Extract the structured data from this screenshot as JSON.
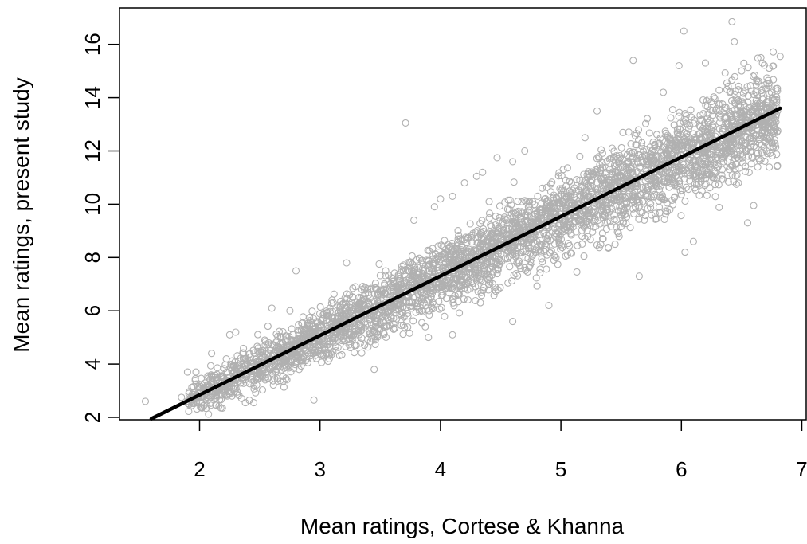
{
  "chart_data": {
    "type": "scatter",
    "title": "",
    "xlabel": "Mean ratings, Cortese & Khanna",
    "ylabel": "Mean ratings, present study",
    "xlim": [
      1.3,
      7.0
    ],
    "ylim": [
      1.95,
      17.2
    ],
    "x_ticks": [
      2,
      3,
      4,
      5,
      6,
      7
    ],
    "y_ticks": [
      2,
      4,
      6,
      8,
      10,
      12,
      14,
      16
    ],
    "grid": false,
    "legend": "none",
    "point_color": "#b0b0b0",
    "line_color": "#000000",
    "fit_line": {
      "label": "",
      "points": [
        [
          1.6,
          1.95
        ],
        [
          6.82,
          13.6
        ]
      ]
    },
    "series": [
      {
        "values": [
          [
            1.55,
            2.6
          ],
          [
            1.85,
            2.75
          ],
          [
            1.9,
            3.7
          ],
          [
            1.97,
            3.7
          ],
          [
            2.1,
            4.4
          ],
          [
            2.25,
            5.1
          ],
          [
            2.3,
            5.2
          ],
          [
            2.38,
            2.55
          ],
          [
            2.45,
            2.55
          ],
          [
            2.8,
            7.5
          ],
          [
            2.95,
            2.65
          ],
          [
            3.22,
            7.8
          ],
          [
            3.71,
            13.05
          ],
          [
            3.78,
            9.4
          ],
          [
            3.95,
            9.9
          ],
          [
            4.0,
            10.2
          ],
          [
            4.1,
            10.3
          ],
          [
            4.2,
            10.8
          ],
          [
            4.3,
            11.05
          ],
          [
            4.35,
            11.2
          ],
          [
            4.47,
            11.75
          ],
          [
            4.6,
            11.6
          ],
          [
            4.7,
            12.0
          ],
          [
            5.3,
            13.5
          ],
          [
            5.6,
            15.4
          ],
          [
            5.65,
            7.3
          ],
          [
            5.98,
            15.2
          ],
          [
            6.02,
            16.5
          ],
          [
            6.03,
            8.2
          ],
          [
            6.2,
            15.3
          ],
          [
            6.42,
            16.85
          ],
          [
            6.44,
            16.1
          ],
          [
            6.5,
            15.0
          ],
          [
            6.55,
            9.3
          ],
          [
            6.6,
            9.95
          ],
          [
            6.66,
            15.5
          ],
          [
            6.82,
            15.55
          ],
          [
            6.8,
            12.75
          ],
          [
            6.1,
            8.6
          ],
          [
            5.2,
            12.5
          ],
          [
            5.45,
            8.5
          ],
          [
            4.9,
            6.2
          ],
          [
            3.1,
            6.4
          ],
          [
            2.6,
            6.1
          ],
          [
            2.75,
            6.0
          ],
          [
            3.9,
            5.0
          ],
          [
            4.1,
            5.1
          ],
          [
            4.6,
            5.6
          ],
          [
            3.45,
            3.8
          ],
          [
            5.85,
            14.2
          ]
        ]
      }
    ]
  }
}
